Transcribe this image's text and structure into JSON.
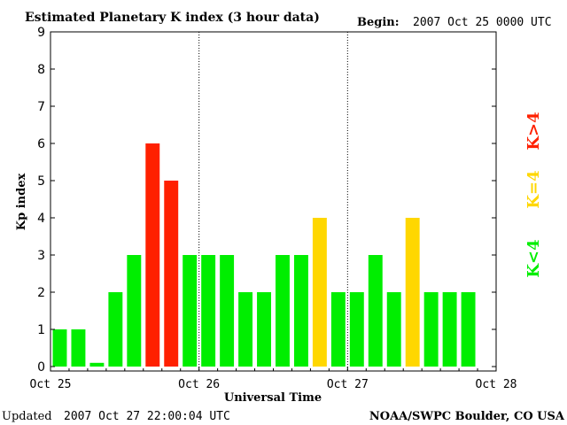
{
  "header": {
    "title": "Estimated Planetary K index (3 hour data)",
    "begin_label": "Begin:",
    "begin_value": "2007 Oct 25 0000 UTC"
  },
  "footer": {
    "updated_label": "Updated",
    "updated_value": "2007 Oct 27 22:00:04 UTC",
    "source": "NOAA/SWPC Boulder, CO USA"
  },
  "legend": {
    "low": "K<4",
    "mid": "K=4",
    "high": "K>4"
  },
  "colors": {
    "low": "#00ee00",
    "mid": "#ffd700",
    "high": "#ff2000"
  },
  "chart_data": {
    "type": "bar",
    "title": "Estimated Planetary K index (3 hour data)",
    "xlabel": "Universal Time",
    "ylabel": "Kp index",
    "ylim": [
      0,
      9
    ],
    "yticks": [
      0,
      1,
      2,
      3,
      4,
      5,
      6,
      7,
      8,
      9
    ],
    "xlim": [
      "Oct 25",
      "Oct 28"
    ],
    "xticks": [
      "Oct 25",
      "Oct 26",
      "Oct 27",
      "Oct 28"
    ],
    "day_dividers": [
      "Oct 26",
      "Oct 27"
    ],
    "interval": "3 hour",
    "categories": [
      "Oct 25 00-03",
      "Oct 25 03-06",
      "Oct 25 06-09",
      "Oct 25 09-12",
      "Oct 25 12-15",
      "Oct 25 15-18",
      "Oct 25 18-21",
      "Oct 25 21-24",
      "Oct 26 00-03",
      "Oct 26 03-06",
      "Oct 26 06-09",
      "Oct 26 09-12",
      "Oct 26 12-15",
      "Oct 26 15-18",
      "Oct 26 18-21",
      "Oct 26 21-24",
      "Oct 27 00-03",
      "Oct 27 03-06",
      "Oct 27 06-09",
      "Oct 27 09-12",
      "Oct 27 12-15",
      "Oct 27 15-18",
      "Oct 27 18-21"
    ],
    "values": [
      1,
      1,
      0.1,
      2,
      3,
      6,
      5,
      3,
      3,
      3,
      2,
      2,
      3,
      3,
      4,
      2,
      2,
      3,
      2,
      4,
      2,
      2,
      2
    ]
  }
}
